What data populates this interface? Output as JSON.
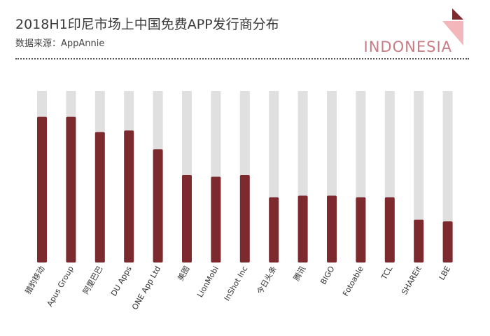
{
  "header": {
    "title": "2018H1印尼市场上中国免费APP发行商分布",
    "subtitle": "数据来源：AppAnnie",
    "country_label": "INDONESIA"
  },
  "colors": {
    "bar": "#7d2a2f",
    "track": "#e0e0e0",
    "accent": "#c87c85",
    "corner_dark": "#7d2a2f"
  },
  "chart_data": {
    "type": "bar",
    "title": "2018H1印尼市场上中国免费APP发行商分布",
    "xlabel": "",
    "ylabel": "",
    "ylim": [
      0,
      100
    ],
    "grid": false,
    "categories": [
      "猎豹移动",
      "Apus Group",
      "阿里巴巴",
      "DU Apps",
      "ONE App Ltd",
      "美图",
      "LionMobi",
      "InShot Inc",
      "今日头条",
      "腾讯",
      "BIGO",
      "Fotoable",
      "TCL",
      "SHAREit",
      "LBE"
    ],
    "values": [
      85,
      85,
      76,
      77,
      66,
      51,
      50,
      51,
      38,
      39,
      39,
      38,
      38,
      25,
      24
    ]
  }
}
